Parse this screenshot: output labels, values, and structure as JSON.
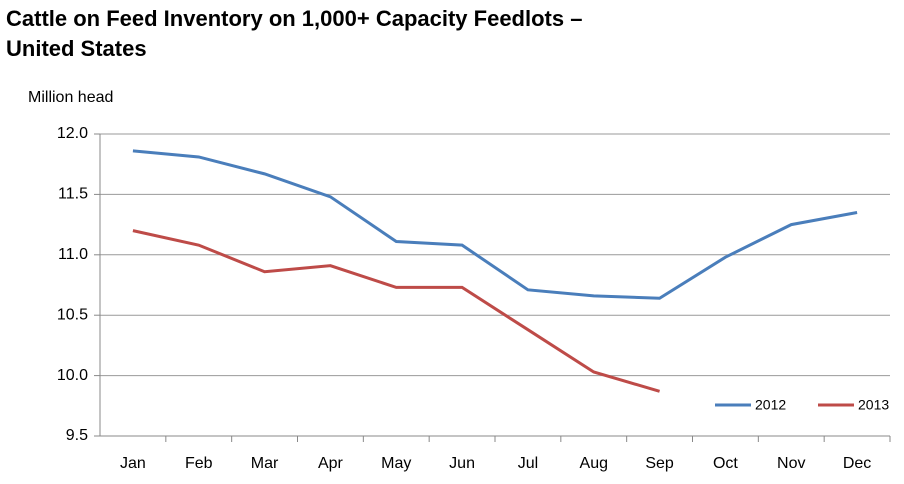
{
  "chart_data": {
    "type": "line",
    "title": "Cattle on Feed Inventory on 1,000+ Capacity Feedlots – United States",
    "y_label": "Million head",
    "categories": [
      "Jan",
      "Feb",
      "Mar",
      "Apr",
      "May",
      "Jun",
      "Jul",
      "Aug",
      "Sep",
      "Oct",
      "Nov",
      "Dec"
    ],
    "series": [
      {
        "name": "2012",
        "color": "#4a7ebb",
        "values": [
          11.86,
          11.81,
          11.67,
          11.48,
          11.11,
          11.08,
          10.71,
          10.66,
          10.64,
          10.98,
          11.25,
          11.35
        ]
      },
      {
        "name": "2013",
        "color": "#be4b48",
        "values": [
          11.2,
          11.08,
          10.86,
          10.91,
          10.73,
          10.73,
          10.38,
          10.03,
          9.87,
          null,
          null,
          null
        ]
      }
    ],
    "ylim": [
      9.5,
      12
    ],
    "yticks": [
      {
        "value": 9.5,
        "label": "9.5"
      },
      {
        "value": 10,
        "label": "10.0"
      },
      10.5,
      {
        "value": 11,
        "label": "11.0"
      },
      11.5,
      {
        "value": 12,
        "label": "12.0"
      }
    ],
    "grid": true,
    "legend": "bottom-right"
  }
}
